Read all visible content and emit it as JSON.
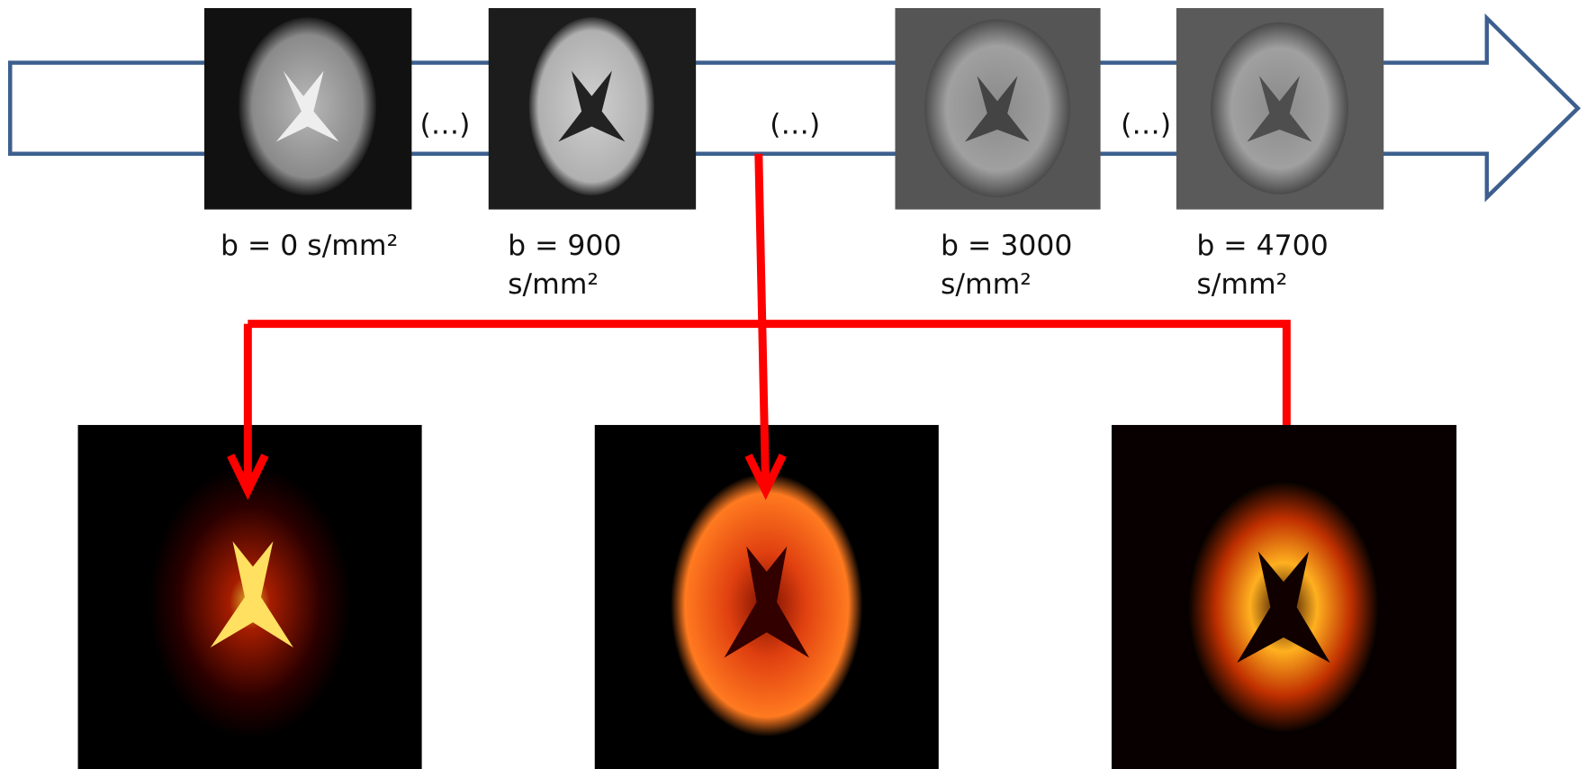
{
  "b_value_images": [
    {
      "label_lines": [
        "b = 0 s/mm²"
      ]
    },
    {
      "label_lines": [
        "b = 900",
        "s/mm²"
      ]
    },
    {
      "label_lines": [
        "b = 3000",
        "s/mm²"
      ]
    },
    {
      "label_lines": [
        "b = 4700",
        "s/mm²"
      ]
    }
  ],
  "gap_markers": [
    "(…)",
    "(…)",
    "(…)"
  ]
}
